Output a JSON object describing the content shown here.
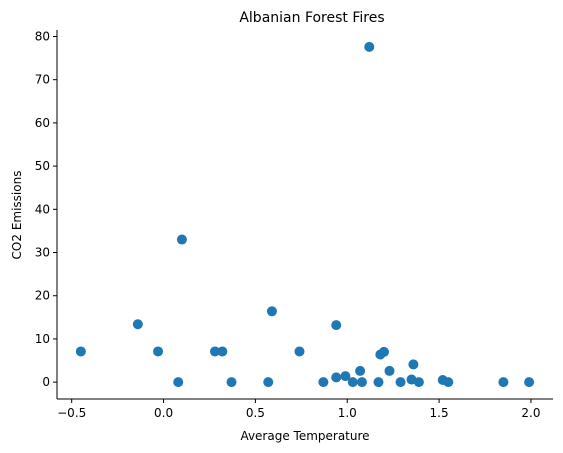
{
  "chart_data": {
    "type": "scatter",
    "title": "Albanian Forest Fires",
    "xlabel": "Average Temperature",
    "ylabel": "CO2 Emissions",
    "xlim": [
      -0.58,
      2.12
    ],
    "ylim": [
      -3.9,
      81.5
    ],
    "xticks": [
      -0.5,
      0.0,
      0.5,
      1.0,
      1.5,
      2.0
    ],
    "xtick_labels": [
      "−0.5",
      "0.0",
      "0.5",
      "1.0",
      "1.5",
      "2.0"
    ],
    "yticks": [
      0,
      10,
      20,
      30,
      40,
      50,
      60,
      70,
      80
    ],
    "ytick_labels": [
      "0",
      "10",
      "20",
      "30",
      "40",
      "50",
      "60",
      "70",
      "80"
    ],
    "grid": false,
    "marker_color": "#1f77b4",
    "points": [
      {
        "x": -0.45,
        "y": 7.1
      },
      {
        "x": -0.14,
        "y": 13.4
      },
      {
        "x": -0.03,
        "y": 7.1
      },
      {
        "x": 0.08,
        "y": 0.0
      },
      {
        "x": 0.1,
        "y": 33.0
      },
      {
        "x": 0.28,
        "y": 7.1
      },
      {
        "x": 0.32,
        "y": 7.1
      },
      {
        "x": 0.37,
        "y": 0.0
      },
      {
        "x": 0.57,
        "y": 0.0
      },
      {
        "x": 0.59,
        "y": 16.4
      },
      {
        "x": 0.74,
        "y": 7.1
      },
      {
        "x": 0.87,
        "y": 0.0
      },
      {
        "x": 0.94,
        "y": 13.2
      },
      {
        "x": 0.94,
        "y": 1.1
      },
      {
        "x": 0.99,
        "y": 1.4
      },
      {
        "x": 1.03,
        "y": 0.0
      },
      {
        "x": 1.07,
        "y": 2.6
      },
      {
        "x": 1.08,
        "y": 0.0
      },
      {
        "x": 1.12,
        "y": 77.6
      },
      {
        "x": 1.17,
        "y": 0.0
      },
      {
        "x": 1.18,
        "y": 6.4
      },
      {
        "x": 1.2,
        "y": 7.0
      },
      {
        "x": 1.23,
        "y": 2.6
      },
      {
        "x": 1.29,
        "y": 0.0
      },
      {
        "x": 1.35,
        "y": 0.6
      },
      {
        "x": 1.36,
        "y": 4.1
      },
      {
        "x": 1.39,
        "y": 0.0
      },
      {
        "x": 1.52,
        "y": 0.5
      },
      {
        "x": 1.55,
        "y": 0.0
      },
      {
        "x": 1.85,
        "y": 0.0
      },
      {
        "x": 1.99,
        "y": 0.0
      }
    ]
  }
}
